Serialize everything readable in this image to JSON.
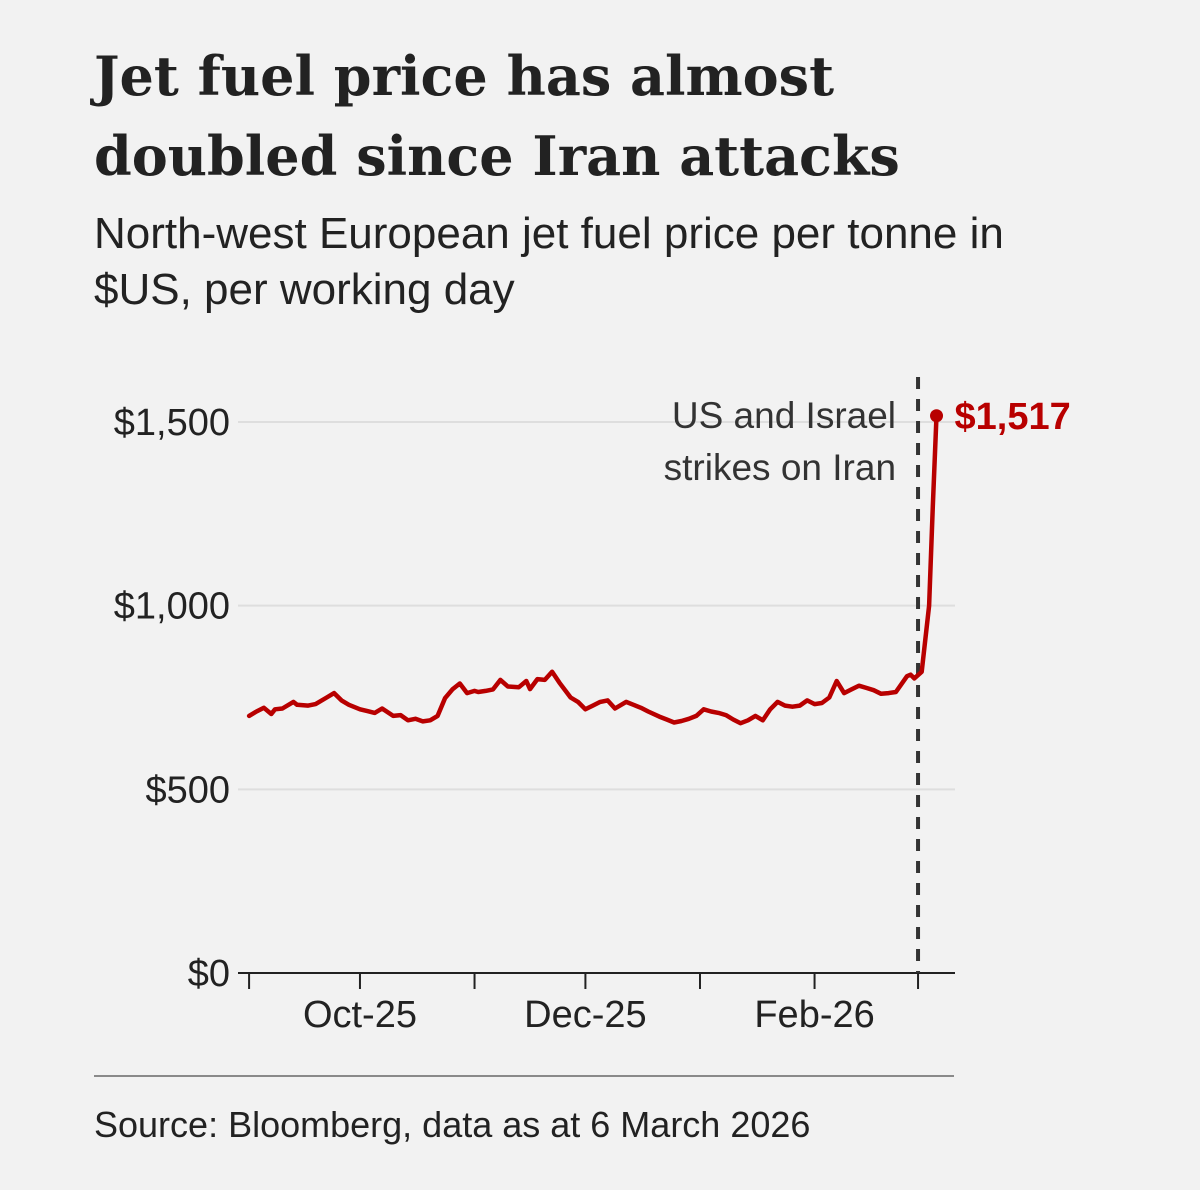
{
  "title": "Jet fuel price has almost doubled since Iran attacks",
  "subtitle": "North-west European jet fuel price per tonne in $US, per working day",
  "source": "Source: Bloomberg, data as at 6 March 2026",
  "colors": {
    "line": "#b80000",
    "grid": "#dedede",
    "axis": "#222222",
    "background": "#f2f2f2"
  },
  "chart_data": {
    "type": "line",
    "title": "Jet fuel price has almost doubled since Iran attacks",
    "subtitle": "North-west European jet fuel price per tonne in $US, per working day",
    "xlabel": "",
    "ylabel": "",
    "ylim": [
      0,
      1600
    ],
    "yticks": [
      0,
      500,
      1000,
      1500
    ],
    "ytick_labels": [
      "$0",
      "$500",
      "$1,000",
      "$1,500"
    ],
    "xlim": [
      "2025-08-29",
      "2026-03-11"
    ],
    "xticks": [
      "2025-09-01",
      "2025-10-01",
      "2025-11-01",
      "2025-12-01",
      "2026-01-01",
      "2026-02-01",
      "2026-03-01"
    ],
    "xtick_labels": [
      "Oct-25",
      "Dec-25",
      "Feb-26"
    ],
    "xtick_label_dates": [
      "2025-10-01",
      "2025-12-01",
      "2026-02-01"
    ],
    "grid": true,
    "series": [
      {
        "x": [
          "2025-09-01",
          "2025-09-03",
          "2025-09-05",
          "2025-09-07",
          "2025-09-08",
          "2025-09-10",
          "2025-09-13",
          "2025-09-14",
          "2025-09-17",
          "2025-09-19",
          "2025-09-22",
          "2025-09-24",
          "2025-09-26",
          "2025-09-28",
          "2025-10-01",
          "2025-10-03",
          "2025-10-05",
          "2025-10-07",
          "2025-10-10",
          "2025-10-12",
          "2025-10-14",
          "2025-10-16",
          "2025-10-18",
          "2025-10-20",
          "2025-10-22",
          "2025-10-24",
          "2025-10-26",
          "2025-10-28",
          "2025-10-30",
          "2025-11-01",
          "2025-11-02",
          "2025-11-04",
          "2025-11-06",
          "2025-11-08",
          "2025-11-10",
          "2025-11-13",
          "2025-11-15",
          "2025-11-16",
          "2025-11-18",
          "2025-11-20",
          "2025-11-22",
          "2025-11-24",
          "2025-11-27",
          "2025-11-29",
          "2025-12-01",
          "2025-12-03",
          "2025-12-05",
          "2025-12-07",
          "2025-12-09",
          "2025-12-12",
          "2025-12-14",
          "2025-12-16",
          "2025-12-18",
          "2025-12-21",
          "2025-12-23",
          "2025-12-25",
          "2025-12-27",
          "2025-12-29",
          "2025-12-31",
          "2026-01-02",
          "2026-01-04",
          "2026-01-06",
          "2026-01-08",
          "2026-01-10",
          "2026-01-12",
          "2026-01-14",
          "2026-01-16",
          "2026-01-18",
          "2026-01-20",
          "2026-01-22",
          "2026-01-24",
          "2026-01-26",
          "2026-01-28",
          "2026-01-30",
          "2026-02-01",
          "2026-02-03",
          "2026-02-05",
          "2026-02-07",
          "2026-02-09",
          "2026-02-11",
          "2026-02-13",
          "2026-02-15",
          "2026-02-17",
          "2026-02-19",
          "2026-02-21",
          "2026-02-23",
          "2026-02-26",
          "2026-02-27",
          "2026-02-28",
          "2026-03-02",
          "2026-03-04",
          "2026-03-05",
          "2026-03-06"
        ],
        "values": [
          700,
          712,
          722,
          705,
          718,
          720,
          738,
          730,
          728,
          732,
          750,
          762,
          742,
          730,
          718,
          713,
          708,
          720,
          700,
          702,
          688,
          692,
          685,
          688,
          700,
          748,
          772,
          788,
          762,
          768,
          765,
          768,
          772,
          798,
          780,
          778,
          795,
          773,
          800,
          798,
          820,
          790,
          750,
          738,
          718,
          728,
          738,
          742,
          720,
          738,
          730,
          722,
          712,
          698,
          690,
          682,
          686,
          692,
          700,
          718,
          712,
          708,
          702,
          690,
          680,
          688,
          700,
          688,
          718,
          738,
          728,
          725,
          728,
          742,
          732,
          735,
          750,
          795,
          762,
          772,
          782,
          776,
          770,
          760,
          762,
          765,
          808,
          812,
          802,
          820,
          1000,
          1270,
          1517
        ]
      }
    ],
    "annotations": [
      {
        "x": "2026-03-01",
        "type": "vertical-dashed-line",
        "label_lines": [
          "US and Israel",
          "strikes on Iran"
        ]
      },
      {
        "x": "2026-03-06",
        "type": "last-value-label",
        "label": "$1,517"
      }
    ]
  }
}
